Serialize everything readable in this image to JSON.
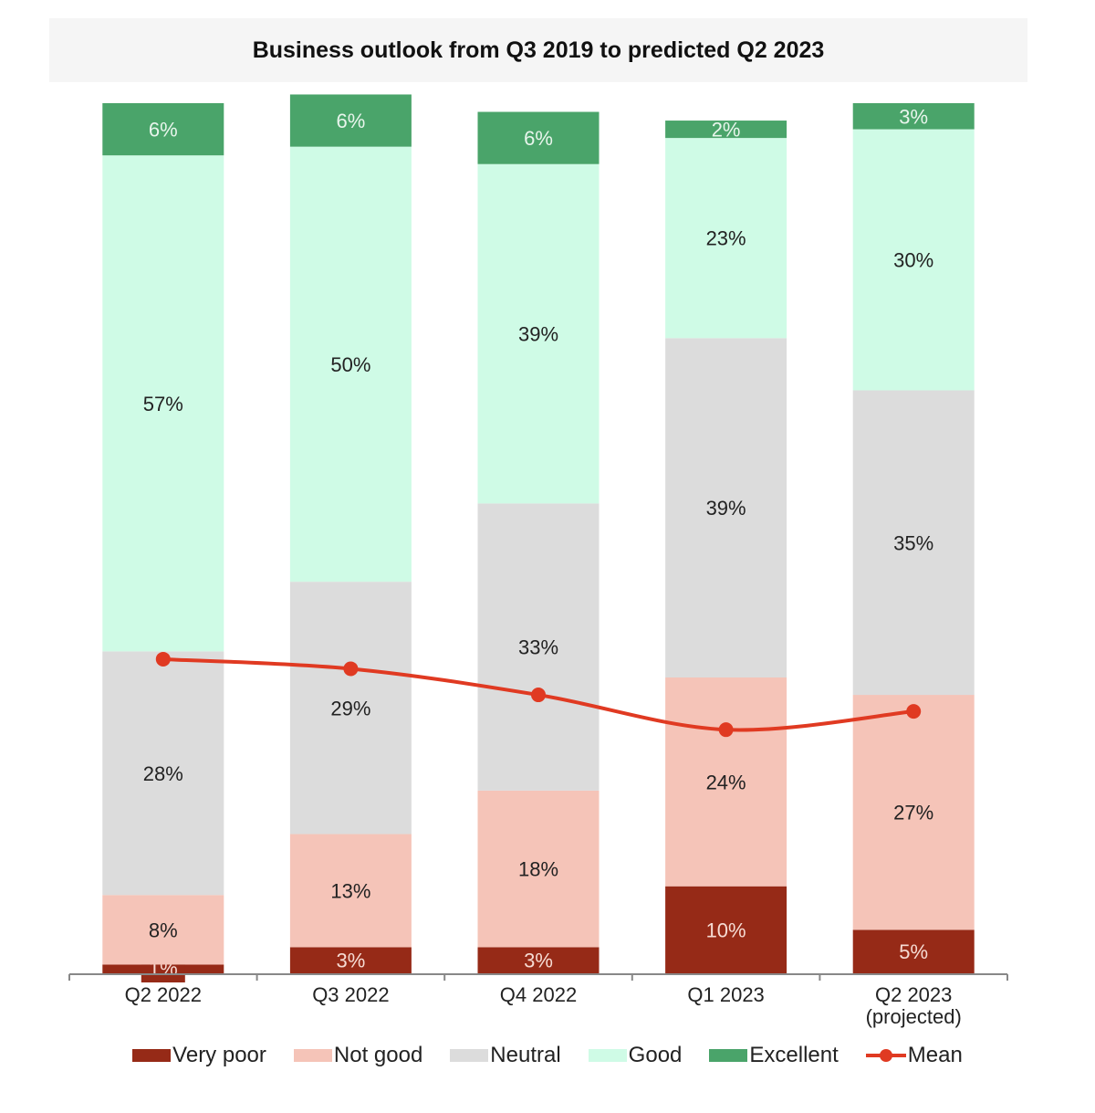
{
  "chart_data": {
    "type": "bar",
    "stacked": true,
    "title": "Business outlook from Q3 2019 to predicted Q2 2023",
    "xlabel": "",
    "ylabel": "",
    "ylim": [
      0,
      100
    ],
    "grid": false,
    "legend_position": "bottom",
    "categories": [
      "Q2 2022",
      "Q3 2022",
      "Q4 2022",
      "Q1 2023",
      "Q2 2023 (projected)"
    ],
    "category_lines": [
      [
        "Q2 2022"
      ],
      [
        "Q3 2022"
      ],
      [
        "Q4 2022"
      ],
      [
        "Q1 2023"
      ],
      [
        "Q2 2023",
        "(projected)"
      ]
    ],
    "series": [
      {
        "name": "Very poor",
        "color": "#962a17",
        "label_color": "#f6dcd4",
        "values": [
          1,
          3,
          3,
          10,
          5
        ]
      },
      {
        "name": "Not good",
        "color": "#f5c4b8",
        "label_color": "#222222",
        "values": [
          8,
          13,
          18,
          24,
          27
        ]
      },
      {
        "name": "Neutral",
        "color": "#dcdcdc",
        "label_color": "#222222",
        "values": [
          28,
          29,
          33,
          39,
          35
        ]
      },
      {
        "name": "Good",
        "color": "#cffbe6",
        "label_color": "#222222",
        "values": [
          57,
          50,
          39,
          23,
          30
        ]
      },
      {
        "name": "Excellent",
        "color": "#4aa46a",
        "label_color": "#e8f5ec",
        "values": [
          6,
          6,
          6,
          2,
          3
        ]
      }
    ],
    "line_series": {
      "name": "Mean",
      "color": "#e03a22",
      "values": [
        36.1,
        35.0,
        32.0,
        28.0,
        30.1
      ]
    }
  }
}
